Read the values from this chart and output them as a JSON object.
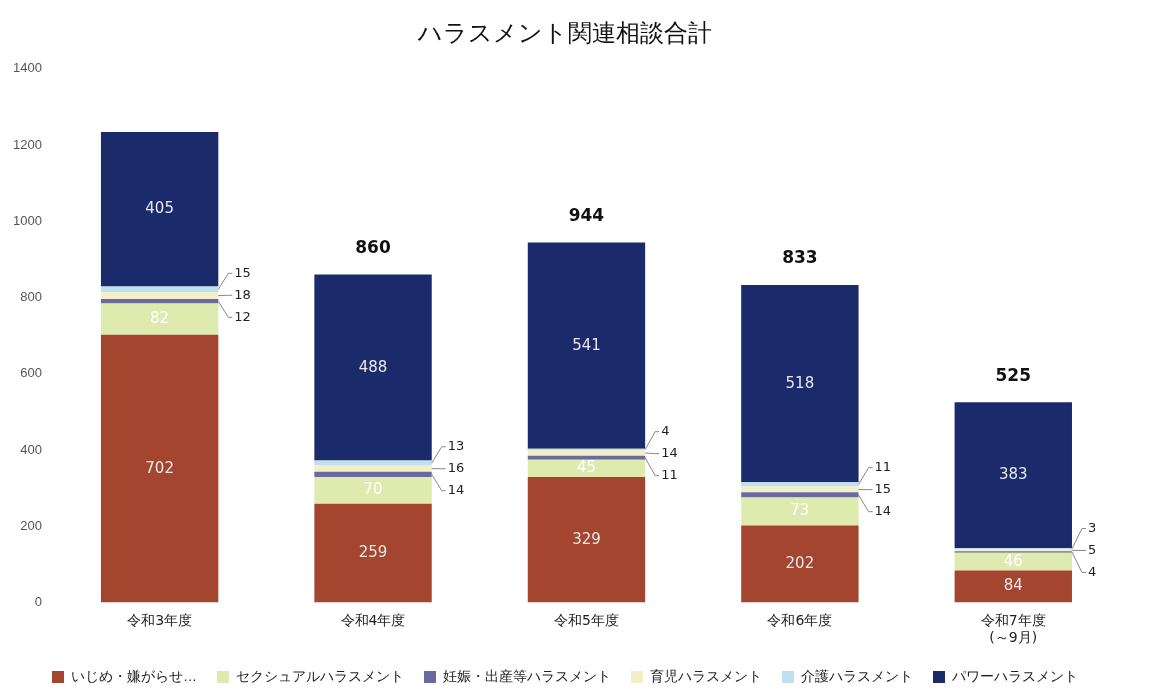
{
  "chart_data": {
    "type": "bar",
    "title": "ハラスメント関連相談合計",
    "stacked": true,
    "data_labels": true,
    "categories": [
      "令和3年度",
      "令和4年度",
      "令和5年度",
      "令和6年度",
      "令和7年度\n(～9月)"
    ],
    "series": [
      {
        "name": "いじめ・嫌がらせ…",
        "color": "#a3452f",
        "values": [
          702,
          259,
          329,
          202,
          84
        ]
      },
      {
        "name": "セクシュアルハラスメント",
        "color": "#dfeaae",
        "values": [
          82,
          70,
          45,
          73,
          46
        ]
      },
      {
        "name": "妊娠・出産等ハラスメント",
        "color": "#6b6aa0",
        "values": [
          12,
          14,
          11,
          14,
          4
        ]
      },
      {
        "name": "育児ハラスメント",
        "color": "#f4efc6",
        "values": [
          18,
          16,
          14,
          15,
          5
        ]
      },
      {
        "name": "介護ハラスメント",
        "color": "#bfe0ee",
        "values": [
          15,
          13,
          4,
          11,
          3
        ]
      },
      {
        "name": "パワーハラスメント",
        "color": "#1b2a6b",
        "values": [
          405,
          488,
          541,
          518,
          383
        ]
      }
    ],
    "totals": [
      null,
      "860",
      "944",
      "833",
      "525"
    ],
    "ylim": [
      0,
      1400
    ],
    "yticks": [
      0,
      200,
      400,
      600,
      800,
      1000,
      1200,
      1400
    ],
    "grid": false,
    "legend": "bottom"
  }
}
